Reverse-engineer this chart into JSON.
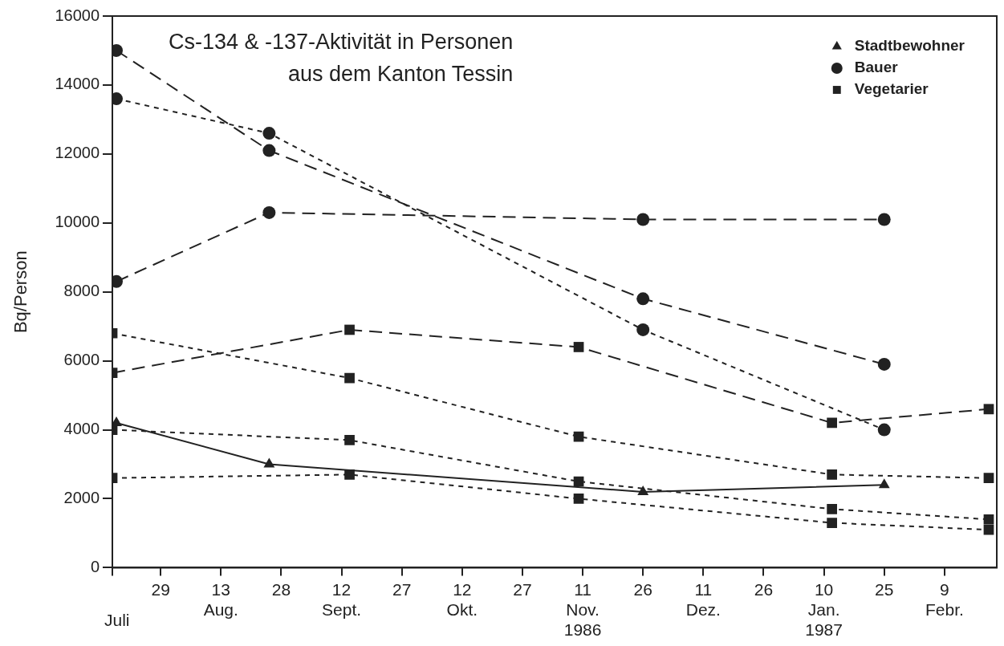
{
  "chart_data": {
    "type": "line",
    "title": "Cs-134 & -137-Aktivität in Personen\naus dem Kanton Tessin",
    "ylabel": "Bq/Person",
    "legend": "top right",
    "xlim": [
      "1986-07-17",
      "1987-02-22"
    ],
    "annotations": [
      "Juli"
    ],
    "xticks": [
      {
        "value": "1986-07-17",
        "label": null
      },
      {
        "value": "1986-07-29",
        "label": "29"
      },
      {
        "value": "1986-08-13",
        "label": "13\nAug."
      },
      {
        "value": "1986-08-28",
        "label": "28"
      },
      {
        "value": "1986-09-12",
        "label": "12\nSept."
      },
      {
        "value": "1986-09-27",
        "label": "27"
      },
      {
        "value": "1986-10-12",
        "label": "12\nOkt."
      },
      {
        "value": "1986-10-27",
        "label": "27"
      },
      {
        "value": "1986-11-11",
        "label": "11\nNov.\n1986"
      },
      {
        "value": "1986-11-26",
        "label": "26"
      },
      {
        "value": "1986-12-11",
        "label": "11\nDez."
      },
      {
        "value": "1986-12-26",
        "label": "26"
      },
      {
        "value": "1987-01-10",
        "label": "10\nJan.\n1987"
      },
      {
        "value": "1987-01-25",
        "label": "25"
      },
      {
        "value": "1987-02-09",
        "label": "9\nFebr."
      }
    ],
    "ylim": [
      0,
      16000
    ],
    "yticks": [
      0,
      2000,
      4000,
      6000,
      8000,
      10000,
      12000,
      14000,
      16000
    ],
    "series": [
      {
        "name": "Stadtbewohner",
        "color": "#222222",
        "marker": "triangle",
        "line_style": "solid",
        "x": [
          "1986-07-18",
          "1986-08-25",
          "1986-11-26",
          "1987-01-25"
        ],
        "values": [
          4200,
          3000,
          2200,
          2400
        ]
      },
      {
        "name": "Bauer",
        "color": "#222222",
        "marker": "circle",
        "line_style": "dashed",
        "x": [
          "1986-07-18",
          "1986-08-25",
          "1986-11-26",
          "1987-01-25"
        ],
        "values": [
          15000,
          12100,
          7800,
          5900
        ]
      },
      {
        "color": "#222222",
        "marker": "circle",
        "line_style": "dotted",
        "x": [
          "1986-07-18",
          "1986-08-25",
          "1986-11-26",
          "1987-01-25"
        ],
        "values": [
          13600,
          12600,
          6900,
          4000
        ]
      },
      {
        "color": "#222222",
        "marker": "circle",
        "line_style": "dashed",
        "x": [
          "1986-07-18",
          "1986-08-25",
          "1986-11-26",
          "1987-01-25"
        ],
        "values": [
          8300,
          10300,
          10100,
          10100
        ]
      },
      {
        "name": "Vegetarier",
        "color": "#222222",
        "marker": "square",
        "line_style": "dashed",
        "x": [
          "1986-07-17",
          "1986-09-14",
          "1986-11-10",
          "1987-01-12",
          "1987-02-20"
        ],
        "values": [
          5650,
          6900,
          6400,
          4200,
          4600
        ]
      },
      {
        "color": "#222222",
        "marker": "square",
        "line_style": "dotted",
        "x": [
          "1986-07-17",
          "1986-09-14",
          "1986-11-10",
          "1987-01-12",
          "1987-02-20"
        ],
        "values": [
          6800,
          5500,
          3800,
          2700,
          2600
        ]
      },
      {
        "color": "#222222",
        "marker": "square",
        "line_style": "dotted",
        "x": [
          "1986-07-17",
          "1986-09-14",
          "1986-11-10",
          "1987-01-12",
          "1987-02-20"
        ],
        "values": [
          4000,
          3700,
          2500,
          1700,
          1400
        ]
      },
      {
        "color": "#222222",
        "marker": "square",
        "line_style": "dotted",
        "x": [
          "1986-07-17",
          "1986-09-14",
          "1986-11-10",
          "1987-01-12",
          "1987-02-20"
        ],
        "values": [
          2600,
          2700,
          2000,
          1300,
          1100
        ]
      }
    ]
  }
}
